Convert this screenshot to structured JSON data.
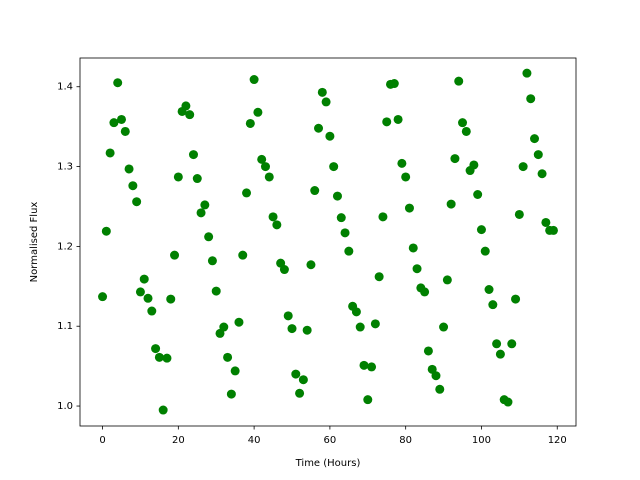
{
  "chart_data": {
    "type": "scatter",
    "x_label": "Time (Hours)",
    "y_label": "Normalised Flux",
    "color": "#008000",
    "x": [
      0,
      1,
      2,
      3,
      4,
      5,
      6,
      7,
      8,
      9,
      10,
      11,
      12,
      13,
      14,
      15,
      16,
      17,
      18,
      19,
      20,
      21,
      22,
      23,
      24,
      25,
      26,
      27,
      28,
      29,
      30,
      31,
      32,
      33,
      34,
      35,
      36,
      37,
      38,
      39,
      40,
      41,
      42,
      43,
      44,
      45,
      46,
      47,
      48,
      49,
      50,
      51,
      52,
      53,
      54,
      55,
      56,
      57,
      58,
      59,
      60,
      61,
      62,
      63,
      64,
      65,
      66,
      67,
      68,
      69,
      70,
      71,
      72,
      73,
      74,
      75,
      76,
      77,
      78,
      79,
      80,
      81,
      82,
      83,
      84,
      85,
      86,
      87,
      88,
      89,
      90,
      91,
      92,
      93,
      94,
      95,
      96,
      97,
      98,
      99,
      100,
      101,
      102,
      103,
      104,
      105,
      106,
      107,
      108,
      109,
      110,
      111,
      112,
      113,
      114,
      115,
      116,
      117,
      118,
      119
    ],
    "values": [
      1.137,
      1.219,
      1.317,
      1.355,
      1.405,
      1.359,
      1.344,
      1.297,
      1.276,
      1.256,
      1.143,
      1.159,
      1.135,
      1.119,
      1.072,
      1.061,
      0.995,
      1.06,
      1.134,
      1.189,
      1.287,
      1.369,
      1.376,
      1.365,
      1.315,
      1.285,
      1.242,
      1.252,
      1.212,
      1.182,
      1.144,
      1.091,
      1.099,
      1.061,
      1.015,
      1.044,
      1.105,
      1.189,
      1.267,
      1.354,
      1.409,
      1.368,
      1.309,
      1.3,
      1.287,
      1.237,
      1.227,
      1.179,
      1.171,
      1.113,
      1.097,
      1.04,
      1.016,
      1.033,
      1.095,
      1.177,
      1.27,
      1.348,
      1.393,
      1.381,
      1.338,
      1.3,
      1.263,
      1.236,
      1.217,
      1.194,
      1.125,
      1.118,
      1.099,
      1.051,
      1.008,
      1.049,
      1.103,
      1.162,
      1.237,
      1.356,
      1.403,
      1.404,
      1.359,
      1.304,
      1.287,
      1.248,
      1.198,
      1.172,
      1.148,
      1.143,
      1.069,
      1.046,
      1.038,
      1.021,
      1.099,
      1.158,
      1.253,
      1.31,
      1.407,
      1.355,
      1.344,
      1.295,
      1.302,
      1.265,
      1.221,
      1.194,
      1.146,
      1.127,
      1.078,
      1.065,
      1.008,
      1.005,
      1.078,
      1.134,
      1.24,
      1.3,
      1.417,
      1.385,
      1.335,
      1.315,
      1.291,
      1.23,
      1.22,
      1.22
    ],
    "xlim": [
      -5.95,
      124.95
    ],
    "xticks": [
      0,
      20,
      40,
      60,
      80,
      100,
      120
    ],
    "ylim": [
      0.975,
      1.436
    ],
    "yticks": [
      {
        "value": 1,
        "label": "1.0"
      },
      1.1,
      1.2,
      1.3,
      1.4
    ]
  }
}
